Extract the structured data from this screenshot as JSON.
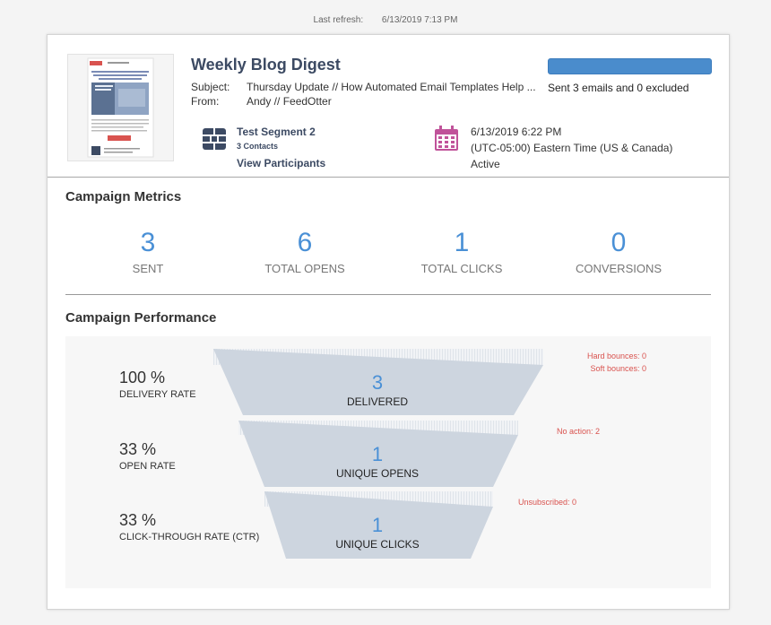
{
  "refresh": {
    "label": "Last refresh:",
    "value": "6/13/2019 7:13 PM"
  },
  "campaign": {
    "title": "Weekly Blog Digest",
    "subject_label": "Subject:",
    "subject": "Thursday Update // How Automated Email Templates Help ...",
    "from_label": "From:",
    "from": "Andy // FeedOtter",
    "progress": 1.0,
    "status": "Sent 3 emails and 0 excluded",
    "segment": {
      "name": "Test Segment 2",
      "contacts": "3 Contacts",
      "link": "View Participants"
    },
    "schedule": {
      "date": "6/13/2019 6:22 PM",
      "timezone": "(UTC-05:00) Eastern Time (US & Canada)",
      "state": "Active"
    }
  },
  "metrics": {
    "title": "Campaign Metrics",
    "items": [
      {
        "value": "3",
        "label": "SENT"
      },
      {
        "value": "6",
        "label": "TOTAL OPENS"
      },
      {
        "value": "1",
        "label": "TOTAL CLICKS"
      },
      {
        "value": "0",
        "label": "CONVERSIONS"
      }
    ]
  },
  "performance": {
    "title": "Campaign Performance",
    "rates": [
      {
        "pct": "100 %",
        "label": "DELIVERY RATE"
      },
      {
        "pct": "33 %",
        "label": "OPEN RATE"
      },
      {
        "pct": "33 %",
        "label": "CLICK-THROUGH RATE (CTR)"
      }
    ],
    "funnel": [
      {
        "value": "3",
        "label": "DELIVERED"
      },
      {
        "value": "1",
        "label": "UNIQUE OPENS"
      },
      {
        "value": "1",
        "label": "UNIQUE CLICKS"
      }
    ],
    "side": {
      "hard": "Hard bounces: 0",
      "soft": "Soft bounces: 0",
      "noaction": "No action: 2",
      "unsub": "Unsubscribed: 0"
    }
  },
  "colors": {
    "accent": "#4a90d6",
    "title": "#3c4a63",
    "alert": "#d9534f",
    "funnel": "#cdd5df",
    "icon_segment": "#3c4a63",
    "icon_calendar": "#c0539a"
  }
}
